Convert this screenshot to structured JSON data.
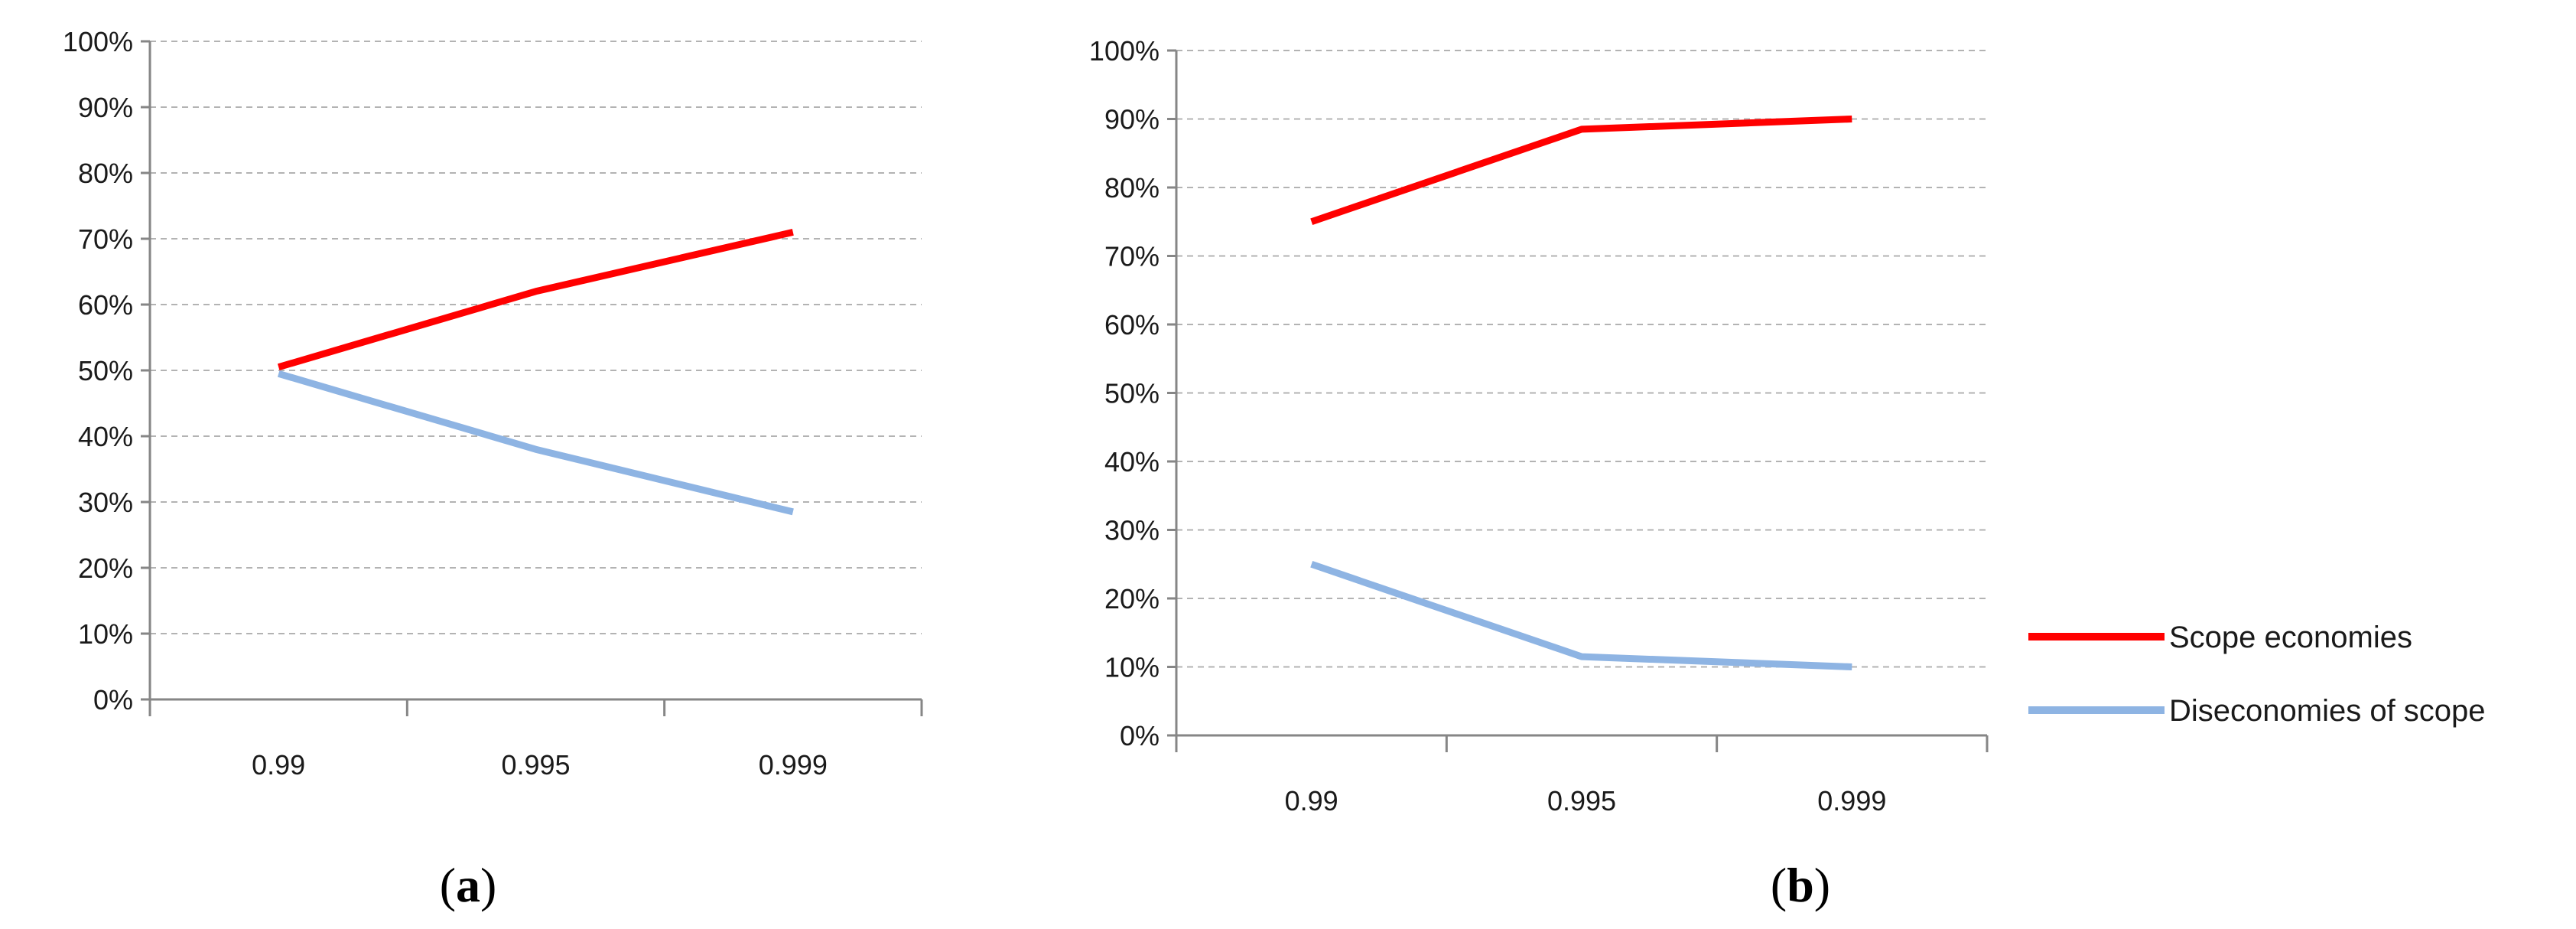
{
  "chart_data": [
    {
      "type": "line",
      "caption_letter": "a",
      "caption": "(a)",
      "categories": [
        "0.99",
        "0.995",
        "0.999"
      ],
      "ylim": [
        0,
        100
      ],
      "y_ticks": [
        "0%",
        "10%",
        "20%",
        "30%",
        "40%",
        "50%",
        "60%",
        "70%",
        "80%",
        "90%",
        "100%"
      ],
      "grid": true,
      "series": [
        {
          "name": "Scope economies",
          "color": "#ff0000",
          "values": [
            50.5,
            62,
            71
          ]
        },
        {
          "name": "Diseconomies of scope",
          "color": "#8eb4e3",
          "values": [
            49.5,
            38,
            28.5
          ]
        }
      ]
    },
    {
      "type": "line",
      "caption_letter": "b",
      "caption": "(b)",
      "categories": [
        "0.99",
        "0.995",
        "0.999"
      ],
      "ylim": [
        0,
        100
      ],
      "y_ticks": [
        "0%",
        "10%",
        "20%",
        "30%",
        "40%",
        "50%",
        "60%",
        "70%",
        "80%",
        "90%",
        "100%"
      ],
      "grid": true,
      "legend_position": "right",
      "series": [
        {
          "name": "Scope economies",
          "color": "#ff0000",
          "values": [
            75,
            88.5,
            90
          ]
        },
        {
          "name": "Diseconomies of scope",
          "color": "#8eb4e3",
          "values": [
            25,
            11.5,
            10
          ]
        }
      ]
    }
  ]
}
